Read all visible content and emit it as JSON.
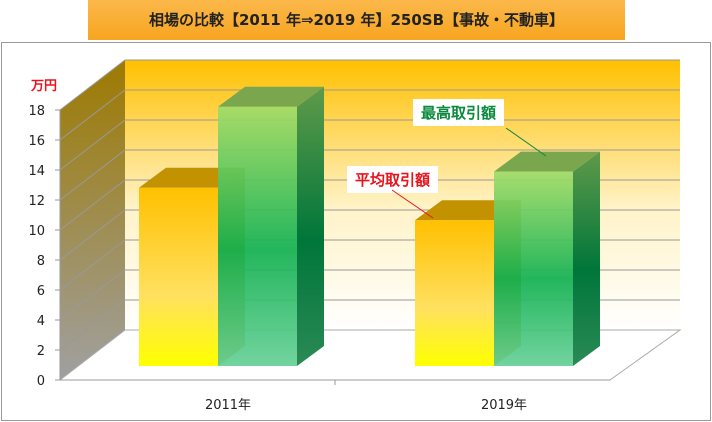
{
  "title": "相場の比較【2011 年⇒2019 年】250SB【事故・不動車】",
  "chart_data": {
    "type": "bar",
    "style": "3d-clustered-column",
    "categories": [
      "2011年",
      "2019年"
    ],
    "series": [
      {
        "name": "平均取引額",
        "values": [
          11,
          9
        ],
        "color": "#ffc000"
      },
      {
        "name": "最高取引額",
        "values": [
          16,
          12
        ],
        "color": "#00b050"
      }
    ],
    "ylabel": "万円",
    "ylim": [
      0,
      18
    ],
    "yticks": [
      0,
      2,
      4,
      6,
      8,
      10,
      12,
      14,
      16,
      18
    ],
    "grid": true,
    "legend": "callouts"
  },
  "callouts": {
    "average": "平均取引額",
    "max": "最高取引額"
  },
  "colors": {
    "average_label": "#e8141d",
    "max_label": "#0a8a3c",
    "wall_top": "#ffc000"
  }
}
